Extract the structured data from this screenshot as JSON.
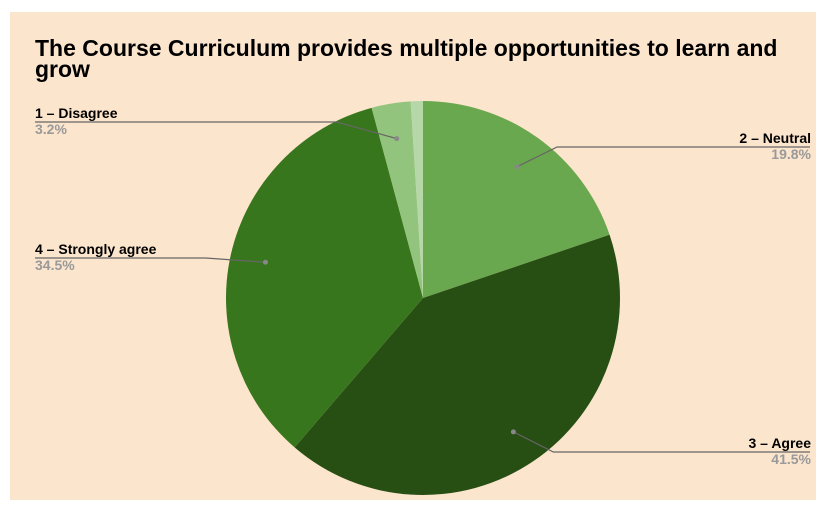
{
  "chart_data": {
    "type": "pie",
    "title": "The Course Curriculum provides multiple opportunities to learn and grow",
    "slices": [
      {
        "label": "2 – Neutral",
        "value": 19.8,
        "percent_text": "19.8%",
        "color": "#6aa84f"
      },
      {
        "label": "3 – Agree",
        "value": 41.5,
        "percent_text": "41.5%",
        "color": "#274e13"
      },
      {
        "label": "4 – Strongly agree",
        "value": 34.5,
        "percent_text": "34.5%",
        "color": "#38761d"
      },
      {
        "label": "1 – Disagree",
        "value": 3.2,
        "percent_text": "3.2%",
        "color": "#93c47d"
      },
      {
        "label": "",
        "value": 1.0,
        "percent_text": "",
        "color": "#b6d7a8"
      }
    ],
    "legend": "none",
    "background": "#fce5cd"
  }
}
